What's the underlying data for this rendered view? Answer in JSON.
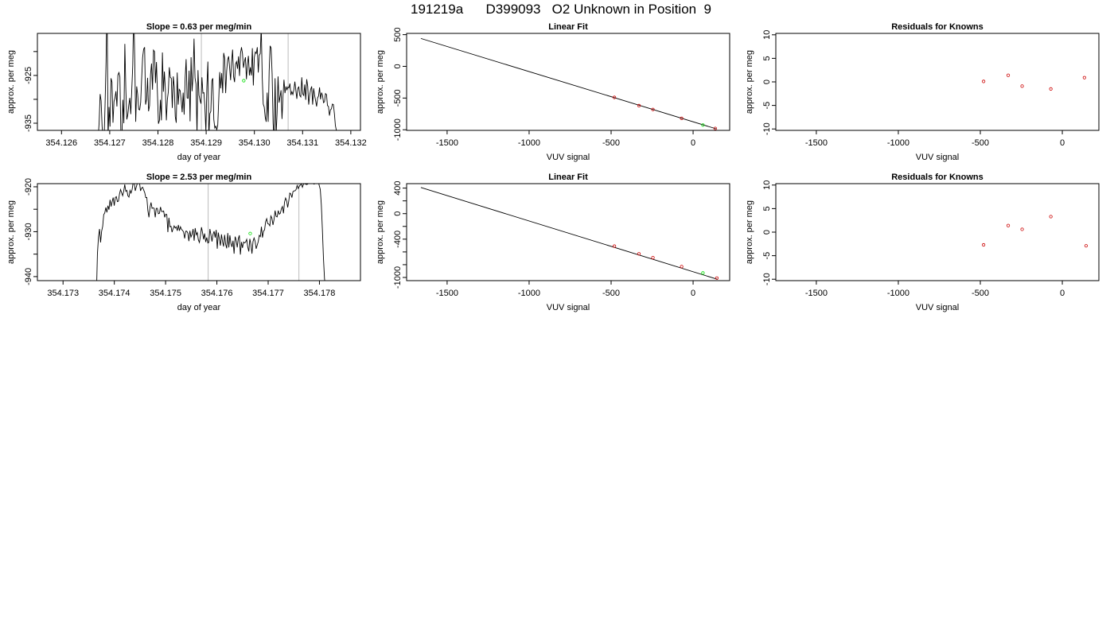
{
  "page": {
    "title": "191219a      D399093   O2 Unknown in Position  9"
  },
  "chart_data": [
    {
      "id": "r1c1",
      "type": "line",
      "title": "Slope =  0.63  per meg/min",
      "xlabel": "day of year",
      "ylabel": "approx. per meg",
      "xlim": [
        354.1255,
        354.1322
      ],
      "ylim": [
        -936.5,
        -916.2
      ],
      "xticks": [
        354.126,
        354.127,
        354.128,
        354.129,
        354.13,
        354.131,
        354.132
      ],
      "xtick_labels": [
        "354.126",
        "354.127",
        "354.128",
        "354.129",
        "354.130",
        "354.131",
        "354.132"
      ],
      "yticks": [
        -935,
        -930,
        -925,
        -920
      ],
      "ytick_labels": [
        "-935",
        "",
        "-925",
        ""
      ],
      "vlines": [
        354.1289,
        354.1307
      ],
      "x_start": 354.12676,
      "x_step": 2.05e-05,
      "values": [
        -938.0,
        -934.9,
        -928.9,
        -930.3,
        -935.7,
        -937.7,
        -938.6,
        -931.0,
        -922.2,
        -908.1,
        -938.2,
        -931.6,
        -935.7,
        -925.6,
        -926.4,
        -934.9,
        -930.5,
        -929.7,
        -928.3,
        -931.5,
        -924.9,
        -924.4,
        -925.3,
        -937.3,
        -938.2,
        -930.1,
        -935.0,
        -918.4,
        -927.8,
        -934.2,
        -933.2,
        -931.2,
        -929.7,
        -933.1,
        -928.0,
        -922.9,
        -910.6,
        -921.7,
        -934.7,
        -927.3,
        -929.0,
        -932.1,
        -932.2,
        -930.7,
        -925.7,
        -921.2,
        -919.5,
        -919.1,
        -931.1,
        -930.0,
        -925.5,
        -932.5,
        -931.3,
        -924.8,
        -922.5,
        -928.0,
        -919.7,
        -920.0,
        -926.6,
        -922.2,
        -928.9,
        -935.1,
        -934.4,
        -930.1,
        -934.4,
        -920.2,
        -928.4,
        -924.2,
        -927.9,
        -934.4,
        -930.1,
        -928.4,
        -923.3,
        -925.4,
        -925.6,
        -931.8,
        -925.2,
        -927.4,
        -933.6,
        -934.9,
        -924.4,
        -931.1,
        -927.9,
        -928.2,
        -930.2,
        -932.7,
        -928.6,
        -933.2,
        -925.6,
        -921.6,
        -929.7,
        -929.8,
        -924.0,
        -934.6,
        -921.2,
        -928.3,
        -925.1,
        -917.3,
        -925.5,
        -926.8,
        -937.1,
        -923.9,
        -929.1,
        -930.1,
        -930.9,
        -925.4,
        -928.7,
        -928.6,
        -931.7,
        -936.8,
        -927.4,
        -922.1,
        -937.8,
        -933.0,
        -932.5,
        -926.1,
        -925.6,
        -934.2,
        -936.0,
        -935.6,
        -936.4,
        -935.4,
        -930.0,
        -924.3,
        -927.7,
        -924.5,
        -928.7,
        -920.3,
        -921.4,
        -928.7,
        -924.1,
        -921.7,
        -921.0,
        -923.4,
        -926.0,
        -922.2,
        -919.6,
        -925.2,
        -926.4,
        -922.6,
        -922.1,
        -923.6,
        -921.0,
        -925.1,
        -920.4,
        -919.1,
        -920.4,
        -923.4,
        -922.1,
        -921.2,
        -925.8,
        -922.7,
        -920.9,
        -925.0,
        -923.3,
        -925.0,
        -919.3,
        -927.1,
        -921.2,
        -920.1,
        -920.4,
        -919.1,
        -924.4,
        -920.8,
        -920.4,
        -914.8,
        -925.4,
        -931.0,
        -931.6,
        -933.7,
        -934.7,
        -928.6,
        -934.7,
        -924.1,
        -918.8,
        -919.3,
        -924.7,
        -935.0,
        -938.5,
        -925.6,
        -937.6,
        -932.9,
        -925.2,
        -930.7,
        -929.5,
        -928.1,
        -934.1,
        -929.3,
        -925.9,
        -928.7,
        -927.3,
        -928.0,
        -927.4,
        -927.6,
        -926.7,
        -929.1,
        -928.4,
        -929.0,
        -928.0,
        -926.3,
        -928.1,
        -929.9,
        -927.7,
        -927.4,
        -929.2,
        -929.5,
        -925.4,
        -928.9,
        -929.2,
        -926.9,
        -930.1,
        -925.8,
        -927.2,
        -931.1,
        -929.1,
        -927.9,
        -927.3,
        -931.1,
        -927.7,
        -929.2,
        -930.3,
        -931.5,
        -929.7,
        -929.3,
        -927.5,
        -930.0,
        -928.6,
        -929.2,
        -930.7,
        -930.5,
        -928.8,
        -929.0,
        -931.3,
        -931.5,
        -933.4,
        -932.2,
        -932.0,
        -931.0,
        -931.1,
        -933.0,
        -935.5,
        -936.5,
        -938.1,
        -938.7,
        -938.3
      ],
      "points": [
        {
          "x": 354.12978,
          "y": -926.1,
          "color": "#00dd00"
        }
      ]
    },
    {
      "id": "r1c2",
      "type": "scatter",
      "title": "Linear Fit",
      "xlabel": "VUV signal",
      "ylabel": "approx. per meg",
      "xlim": [
        -1747,
        223
      ],
      "ylim": [
        -1010,
        520
      ],
      "xticks": [
        -1500,
        -1000,
        -500,
        0
      ],
      "xtick_labels": [
        "-1500",
        "-1000",
        "-500",
        "0"
      ],
      "yticks": [
        -1000,
        -500,
        0,
        500
      ],
      "ytick_labels": [
        "-1000",
        "-500",
        "0",
        "500"
      ],
      "fit_line": [
        [
          -1660,
          440
        ],
        [
          140,
          -985
        ]
      ],
      "points": [
        {
          "x": -480,
          "y": -490,
          "color": "#cc0000"
        },
        {
          "x": -330,
          "y": -620,
          "color": "#cc0000"
        },
        {
          "x": -245,
          "y": -680,
          "color": "#cc0000"
        },
        {
          "x": -70,
          "y": -820,
          "color": "#cc0000"
        },
        {
          "x": 135,
          "y": -980,
          "color": "#cc0000"
        },
        {
          "x": 60,
          "y": -926,
          "color": "#00dd00"
        }
      ]
    },
    {
      "id": "r1c3",
      "type": "scatter",
      "title": "Residuals for Knowns",
      "xlabel": "VUV signal",
      "ylabel": "approx. per meg",
      "xlim": [
        -1747,
        223
      ],
      "ylim": [
        -10.3,
        10.3
      ],
      "xticks": [
        -1500,
        -1000,
        -500,
        0
      ],
      "xtick_labels": [
        "-1500",
        "-1000",
        "-500",
        "0"
      ],
      "yticks": [
        -10,
        -5,
        0,
        5,
        10
      ],
      "ytick_labels": [
        "-10",
        "-5",
        "0",
        "5",
        "10"
      ],
      "points": [
        {
          "x": -480,
          "y": 0.1,
          "color": "#cc0000"
        },
        {
          "x": -330,
          "y": 1.4,
          "color": "#cc0000"
        },
        {
          "x": -245,
          "y": -0.9,
          "color": "#cc0000"
        },
        {
          "x": -70,
          "y": -1.5,
          "color": "#cc0000"
        },
        {
          "x": 135,
          "y": 0.9,
          "color": "#cc0000"
        }
      ]
    },
    {
      "id": "r2c1",
      "type": "line",
      "title": "Slope =  2.53  per meg/min",
      "xlabel": "day of year",
      "ylabel": "approx. per meg",
      "xlim": [
        354.1725,
        354.1788
      ],
      "ylim": [
        -940.9,
        -919.3
      ],
      "xticks": [
        354.173,
        354.174,
        354.175,
        354.176,
        354.177,
        354.178
      ],
      "xtick_labels": [
        "354.173",
        "354.174",
        "354.175",
        "354.176",
        "354.177",
        "354.178"
      ],
      "yticks": [
        -940,
        -935,
        -930,
        -925,
        -920
      ],
      "ytick_labels": [
        "-940",
        "",
        "-930",
        "",
        "-920"
      ],
      "vlines": [
        354.17583,
        354.1776
      ],
      "x_start": 354.17365,
      "x_step": 2.05e-05,
      "values": [
        -944.5,
        -935.0,
        -931.2,
        -929.4,
        -932.4,
        -929.9,
        -928.8,
        -926.2,
        -925.8,
        -924.6,
        -925.7,
        -924.2,
        -925.1,
        -922.9,
        -924.4,
        -923.3,
        -922.4,
        -924.2,
        -922.4,
        -922.2,
        -923.3,
        -923.2,
        -921.6,
        -920.6,
        -921.3,
        -922.0,
        -921.0,
        -919.5,
        -921.0,
        -920.8,
        -922.0,
        -922.3,
        -920.8,
        -921.4,
        -920.6,
        -919.0,
        -919.2,
        -920.9,
        -920.0,
        -919.2,
        -918.7,
        -919.0,
        -920.9,
        -920.3,
        -920.1,
        -920.7,
        -921.3,
        -922.4,
        -922.4,
        -925.3,
        -926.8,
        -924.6,
        -923.5,
        -924.8,
        -924.7,
        -924.8,
        -926.8,
        -924.8,
        -924.8,
        -926.0,
        -925.9,
        -924.5,
        -925.5,
        -925.5,
        -925.4,
        -926.8,
        -926.1,
        -926.2,
        -930.1,
        -926.9,
        -928.9,
        -928.8,
        -930.1,
        -929.3,
        -928.7,
        -929.2,
        -928.9,
        -929.8,
        -928.5,
        -929.8,
        -928.9,
        -929.5,
        -929.7,
        -930.1,
        -931.5,
        -929.9,
        -929.9,
        -930.3,
        -932.1,
        -929.8,
        -931.2,
        -930.6,
        -929.4,
        -932.0,
        -929.2,
        -930.7,
        -930.2,
        -931.8,
        -932.4,
        -930.9,
        -929.0,
        -930.2,
        -931.7,
        -930.4,
        -932.3,
        -931.3,
        -932.5,
        -932.4,
        -929.4,
        -930.7,
        -932.2,
        -930.6,
        -929.9,
        -931.3,
        -929.6,
        -933.8,
        -930.2,
        -931.6,
        -933.1,
        -930.6,
        -932.2,
        -933.3,
        -930.7,
        -932.8,
        -933.7,
        -930.3,
        -933.5,
        -930.8,
        -932.6,
        -933.4,
        -932.0,
        -934.9,
        -931.1,
        -931.9,
        -933.5,
        -931.6,
        -930.8,
        -935.1,
        -932.3,
        -933.6,
        -932.3,
        -932.5,
        -932.3,
        -931.7,
        -933.4,
        -934.4,
        -931.6,
        -932.8,
        -934.9,
        -932.2,
        -931.4,
        -932.1,
        -933.8,
        -933.0,
        -932.2,
        -930.8,
        -931.1,
        -928.9,
        -931.3,
        -929.9,
        -929.6,
        -927.8,
        -927.1,
        -928.2,
        -928.3,
        -928.7,
        -926.5,
        -927.0,
        -928.5,
        -927.3,
        -925.3,
        -926.6,
        -926.7,
        -925.3,
        -926.1,
        -925.9,
        -924.9,
        -924.4,
        -925.9,
        -923.4,
        -922.5,
        -923.1,
        -924.6,
        -923.2,
        -921.4,
        -921.6,
        -922.4,
        -921.1,
        -920.9,
        -920.9,
        -920.6,
        -919.7,
        -920.4,
        -919.9,
        -919.6,
        -919.4,
        -920.1,
        -919.4,
        -919.3,
        -919.4,
        -919.5,
        -919.4,
        -919.2,
        -919.3,
        -919.1,
        -919.3,
        -919.2,
        -919.4,
        -919.3,
        -919.0,
        -919.2,
        -918.8,
        -919.7,
        -920.6,
        -924.0,
        -929.5,
        -935.8,
        -940.4,
        -942.5
      ],
      "points": [
        {
          "x": 354.17665,
          "y": -930.4,
          "color": "#00dd00"
        }
      ]
    },
    {
      "id": "r2c2",
      "type": "scatter",
      "title": "Linear Fit",
      "xlabel": "VUV signal",
      "ylabel": "approx. per meg",
      "xlim": [
        -1747,
        223
      ],
      "ylim": [
        -1050,
        470
      ],
      "xticks": [
        -1500,
        -1000,
        -500,
        0
      ],
      "xtick_labels": [
        "-1500",
        "-1000",
        "-500",
        "0"
      ],
      "yticks": [
        -1000,
        -800,
        -600,
        -400,
        -200,
        0,
        200,
        400
      ],
      "ytick_labels": [
        "-1000",
        "",
        "",
        "-400",
        "",
        "0",
        "",
        "400"
      ],
      "fit_line": [
        [
          -1660,
          410
        ],
        [
          150,
          -1030
        ]
      ],
      "points": [
        {
          "x": -480,
          "y": -510,
          "color": "#cc0000"
        },
        {
          "x": -330,
          "y": -630,
          "color": "#cc0000"
        },
        {
          "x": -245,
          "y": -690,
          "color": "#cc0000"
        },
        {
          "x": -70,
          "y": -830,
          "color": "#cc0000"
        },
        {
          "x": 145,
          "y": -1010,
          "color": "#cc0000"
        },
        {
          "x": 60,
          "y": -930,
          "color": "#00dd00"
        }
      ]
    },
    {
      "id": "r2c3",
      "type": "scatter",
      "title": "Residuals for Knowns",
      "xlabel": "VUV signal",
      "ylabel": "approx. per meg",
      "xlim": [
        -1747,
        223
      ],
      "ylim": [
        -10.3,
        10.3
      ],
      "xticks": [
        -1500,
        -1000,
        -500,
        0
      ],
      "xtick_labels": [
        "-1500",
        "-1000",
        "-500",
        "0"
      ],
      "yticks": [
        -10,
        -5,
        0,
        5,
        10
      ],
      "ytick_labels": [
        "-10",
        "-5",
        "0",
        "5",
        "10"
      ],
      "points": [
        {
          "x": -480,
          "y": -2.7,
          "color": "#cc0000"
        },
        {
          "x": -330,
          "y": 1.4,
          "color": "#cc0000"
        },
        {
          "x": -245,
          "y": 0.6,
          "color": "#cc0000"
        },
        {
          "x": -70,
          "y": 3.3,
          "color": "#cc0000"
        },
        {
          "x": 145,
          "y": -2.9,
          "color": "#cc0000"
        }
      ]
    }
  ]
}
